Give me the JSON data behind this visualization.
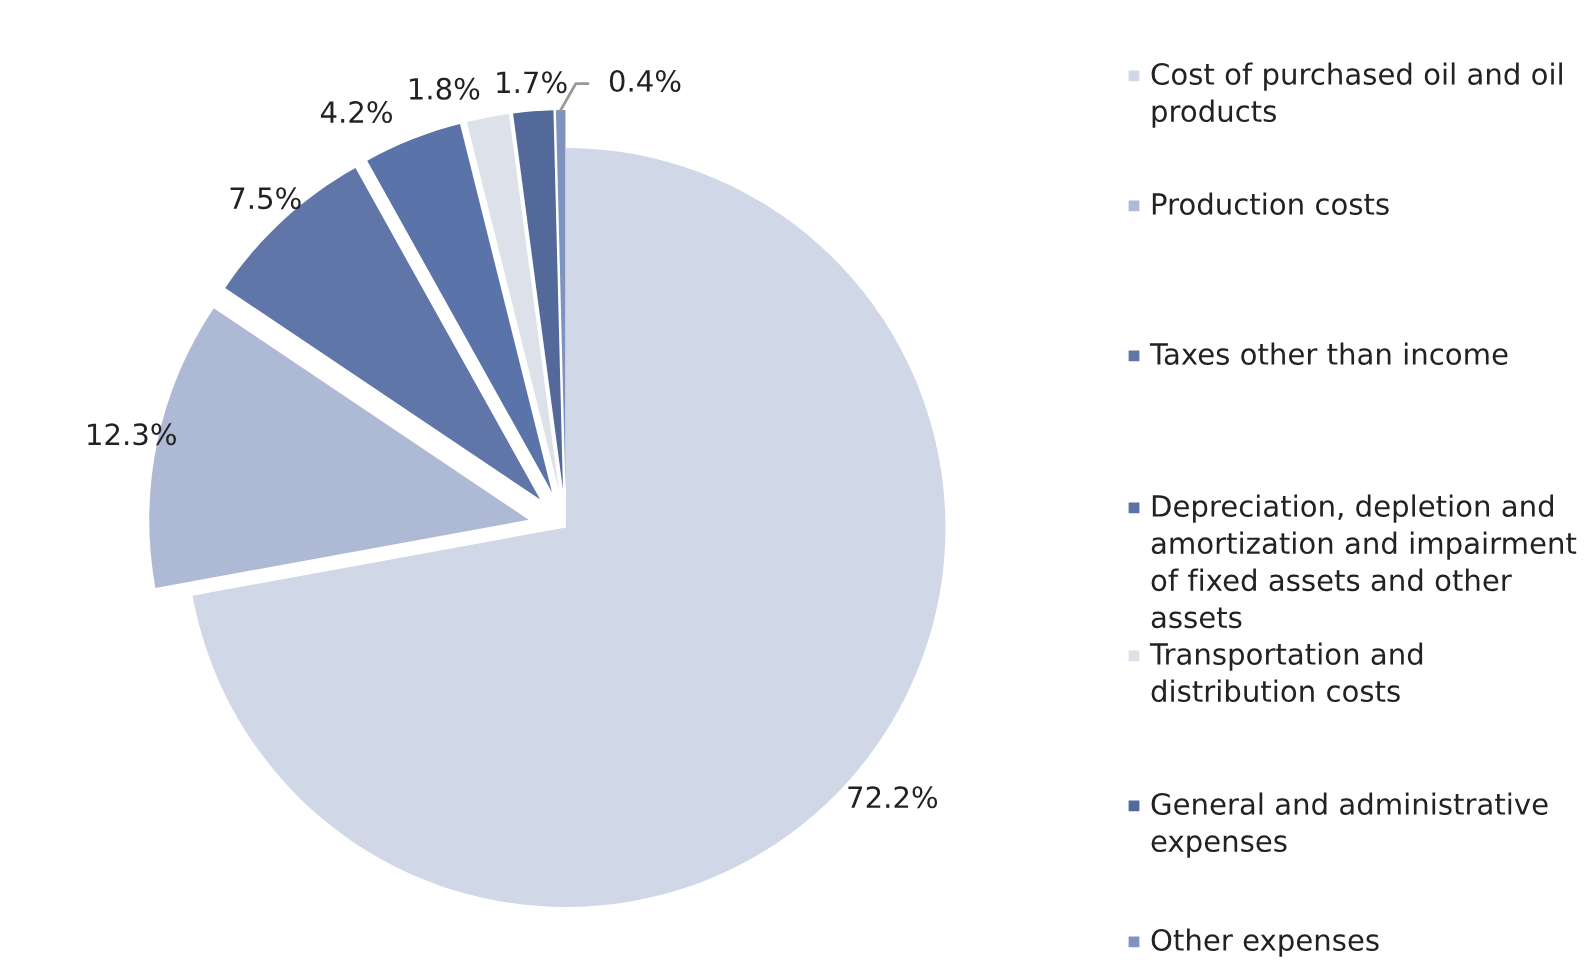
{
  "chart_data": {
    "type": "pie",
    "categories": [
      "Cost of purchased oil and oil products",
      "Production costs",
      "Taxes other than income",
      "Depreciation, depletion and amortization and impairment of fixed assets and other assets",
      "Transportation and distribution costs",
      "General and administrative expenses",
      "Other expenses"
    ],
    "values": [
      72.2,
      12.3,
      7.5,
      4.2,
      1.8,
      1.7,
      0.4
    ],
    "value_labels": [
      "72.2%",
      "12.3%",
      "7.5%",
      "4.2%",
      "1.8%",
      "1.7%",
      "0.4%"
    ],
    "colors": [
      "#d0d7e6",
      "#aeb9d5",
      "#6076a8",
      "#5a73a8",
      "#dde2ea",
      "#52699a",
      "#8093bf"
    ],
    "legend": "right"
  }
}
